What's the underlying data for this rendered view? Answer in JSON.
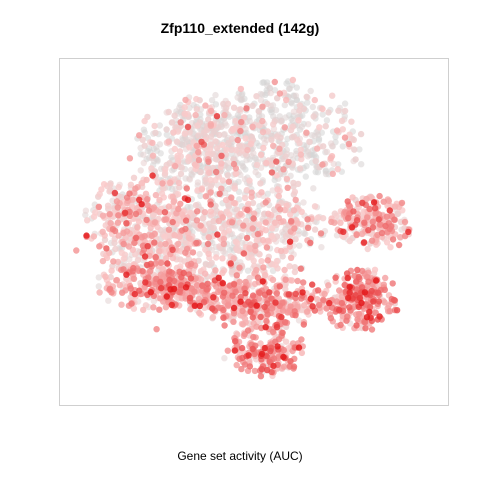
{
  "chart_data": {
    "type": "scatter",
    "title": "Zfp110_extended (142g)",
    "xlabel": "",
    "ylabel": "",
    "caption": "Gene set activity (AUC)",
    "axes_visible": false,
    "grid": false,
    "legend": "none",
    "color_scale": {
      "low": "#d3d3d3",
      "high": "#e41a1c"
    },
    "regions": [
      {
        "name": "upper-center cluster",
        "cx": 0.55,
        "cy": 0.78,
        "rx": 0.2,
        "ry": 0.15,
        "n": 520,
        "activity": 0.08
      },
      {
        "name": "upper-left cluster",
        "cx": 0.34,
        "cy": 0.75,
        "rx": 0.13,
        "ry": 0.13,
        "n": 380,
        "activity": 0.12
      },
      {
        "name": "left lobe",
        "cx": 0.2,
        "cy": 0.53,
        "rx": 0.13,
        "ry": 0.13,
        "n": 420,
        "activity": 0.3
      },
      {
        "name": "central body",
        "cx": 0.46,
        "cy": 0.5,
        "rx": 0.2,
        "ry": 0.13,
        "n": 560,
        "activity": 0.22
      },
      {
        "name": "lower-left band",
        "cx": 0.28,
        "cy": 0.34,
        "rx": 0.17,
        "ry": 0.07,
        "n": 380,
        "activity": 0.45
      },
      {
        "name": "lower-center band",
        "cx": 0.52,
        "cy": 0.29,
        "rx": 0.16,
        "ry": 0.07,
        "n": 360,
        "activity": 0.42
      },
      {
        "name": "bottom lobe",
        "cx": 0.53,
        "cy": 0.15,
        "rx": 0.09,
        "ry": 0.07,
        "n": 180,
        "activity": 0.5
      },
      {
        "name": "right island",
        "cx": 0.81,
        "cy": 0.53,
        "rx": 0.09,
        "ry": 0.07,
        "n": 230,
        "activity": 0.38
      },
      {
        "name": "lower-right cluster",
        "cx": 0.78,
        "cy": 0.3,
        "rx": 0.09,
        "ry": 0.08,
        "n": 240,
        "activity": 0.55
      }
    ],
    "xlim": [
      0,
      1
    ],
    "ylim": [
      0,
      1
    ]
  }
}
